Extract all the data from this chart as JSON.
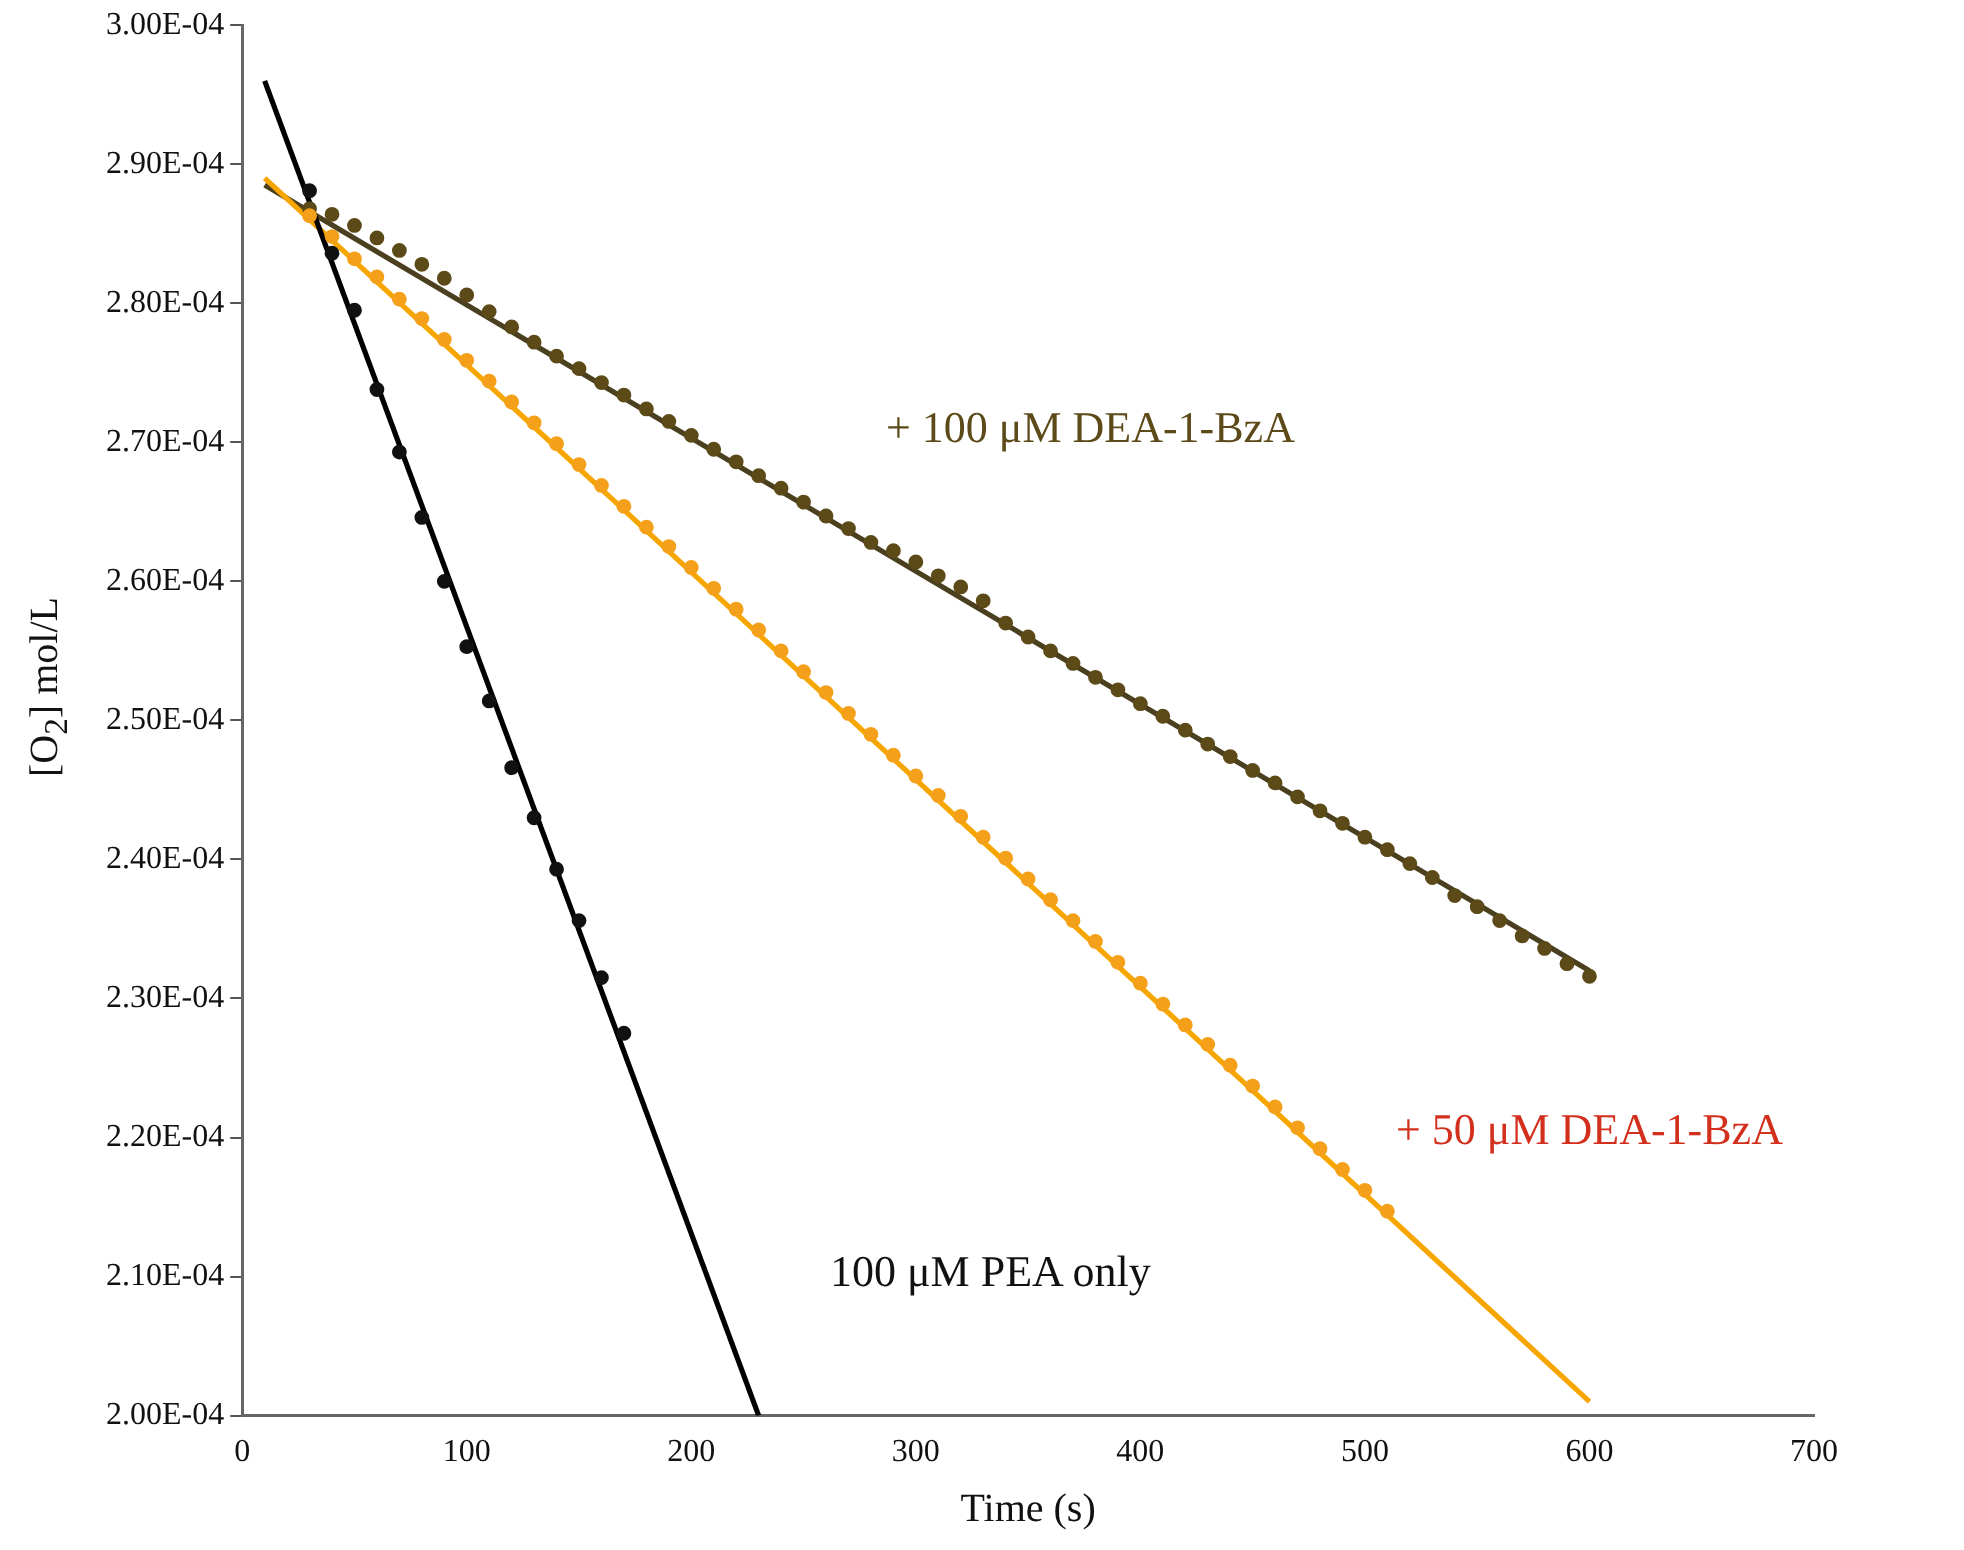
{
  "chart_data": {
    "type": "scatter",
    "xlabel": "Time (s)",
    "ylabel": "[O$_{2}$] mol/L",
    "xlim": [
      0,
      700
    ],
    "xticks": [
      0,
      100,
      200,
      300,
      400,
      500,
      600,
      700
    ],
    "ylim": [
      0.0002,
      0.0003
    ],
    "yticks": [
      {
        "value": 0.0002,
        "label": "2.00E-04"
      },
      {
        "value": 0.00021,
        "label": "2.10E-04"
      },
      {
        "value": 0.00022,
        "label": "2.20E-04"
      },
      {
        "value": 0.00023,
        "label": "2.30E-04"
      },
      {
        "value": 0.00024,
        "label": "2.40E-04"
      },
      {
        "value": 0.00025,
        "label": "2.50E-04"
      },
      {
        "value": 0.00026,
        "label": "2.60E-04"
      },
      {
        "value": 0.00027,
        "label": "2.70E-04"
      },
      {
        "value": 0.00028,
        "label": "2.80E-04"
      },
      {
        "value": 0.00029,
        "label": "2.90E-04"
      },
      {
        "value": 0.0003,
        "label": "3.00E-04"
      }
    ],
    "grid": false,
    "legend": false,
    "series": [
      {
        "name": "100 μM PEA only",
        "type": "scatter",
        "marker": "circle",
        "color": "#111111",
        "x": [
          30,
          40,
          50,
          60,
          70,
          80,
          90,
          100,
          110,
          120,
          130,
          140,
          150,
          160,
          170
        ],
        "values": [
          0.0002881,
          0.0002836,
          0.0002795,
          0.0002738,
          0.0002693,
          0.0002646,
          0.00026,
          0.0002553,
          0.0002514,
          0.0002466,
          0.000243,
          0.0002393,
          0.0002356,
          0.0002315,
          0.0002275
        ]
      },
      {
        "name": "+ 50 μM DEA-1-BzA",
        "type": "scatter",
        "marker": "circle",
        "color": "#f5a01a",
        "x": [
          30,
          40,
          50,
          60,
          70,
          80,
          90,
          100,
          110,
          120,
          130,
          140,
          150,
          160,
          170,
          180,
          190,
          200,
          210,
          220,
          230,
          240,
          250,
          260,
          270,
          280,
          290,
          300,
          310,
          320,
          330,
          340,
          350,
          360,
          370,
          380,
          390,
          400,
          410,
          420,
          430,
          440,
          450,
          460,
          470,
          480,
          490,
          500,
          510
        ],
        "values": [
          0.0002863,
          0.0002848,
          0.0002832,
          0.0002819,
          0.0002803,
          0.0002789,
          0.0002774,
          0.0002759,
          0.0002744,
          0.0002729,
          0.0002714,
          0.0002699,
          0.0002684,
          0.0002669,
          0.0002654,
          0.0002639,
          0.0002625,
          0.000261,
          0.0002595,
          0.000258,
          0.0002565,
          0.000255,
          0.0002535,
          0.000252,
          0.0002505,
          0.000249,
          0.0002475,
          0.000246,
          0.0002446,
          0.0002431,
          0.0002416,
          0.0002401,
          0.0002386,
          0.0002371,
          0.0002356,
          0.0002341,
          0.0002326,
          0.0002311,
          0.0002296,
          0.0002281,
          0.0002267,
          0.0002252,
          0.0002237,
          0.0002222,
          0.0002207,
          0.0002192,
          0.0002177,
          0.0002162,
          0.0002147
        ]
      },
      {
        "name": "+ 100 μM DEA-1-BzA",
        "type": "scatter",
        "marker": "circle",
        "color": "#5c4a18",
        "x": [
          30,
          40,
          50,
          60,
          70,
          80,
          90,
          100,
          110,
          120,
          130,
          140,
          150,
          160,
          170,
          180,
          190,
          200,
          210,
          220,
          230,
          240,
          250,
          260,
          270,
          280,
          290,
          300,
          310,
          320,
          330,
          340,
          350,
          360,
          370,
          380,
          390,
          400,
          410,
          420,
          430,
          440,
          450,
          460,
          470,
          480,
          490,
          500,
          510,
          520,
          530,
          540,
          550,
          560,
          570,
          580,
          590,
          600
        ],
        "values": [
          0.0002868,
          0.0002864,
          0.0002856,
          0.0002847,
          0.0002838,
          0.0002828,
          0.0002818,
          0.0002806,
          0.0002794,
          0.0002783,
          0.0002772,
          0.0002762,
          0.0002753,
          0.0002743,
          0.0002734,
          0.0002724,
          0.0002715,
          0.0002705,
          0.0002695,
          0.0002686,
          0.0002676,
          0.0002667,
          0.0002657,
          0.0002647,
          0.0002638,
          0.0002628,
          0.0002622,
          0.0002614,
          0.0002604,
          0.0002596,
          0.0002586,
          0.000257,
          0.000256,
          0.000255,
          0.0002541,
          0.0002531,
          0.0002522,
          0.0002512,
          0.0002503,
          0.0002493,
          0.0002483,
          0.0002474,
          0.0002464,
          0.0002455,
          0.0002445,
          0.0002435,
          0.0002426,
          0.0002416,
          0.0002407,
          0.0002397,
          0.0002387,
          0.0002374,
          0.0002366,
          0.0002356,
          0.0002345,
          0.0002336,
          0.0002325,
          0.0002316
        ]
      },
      {
        "type": "line",
        "marker": "none",
        "color": "#000000",
        "x": [
          10,
          230
        ],
        "values": [
          0.000296,
          0.0002
        ]
      },
      {
        "type": "line",
        "marker": "none",
        "color": "#f7a600",
        "x": [
          10,
          600
        ],
        "values": [
          0.000289,
          0.000201
        ]
      },
      {
        "type": "line",
        "marker": "none",
        "color": "#4a3f1e",
        "x": [
          10,
          600
        ],
        "values": [
          0.0002885,
          0.000232
        ]
      }
    ]
  }
}
